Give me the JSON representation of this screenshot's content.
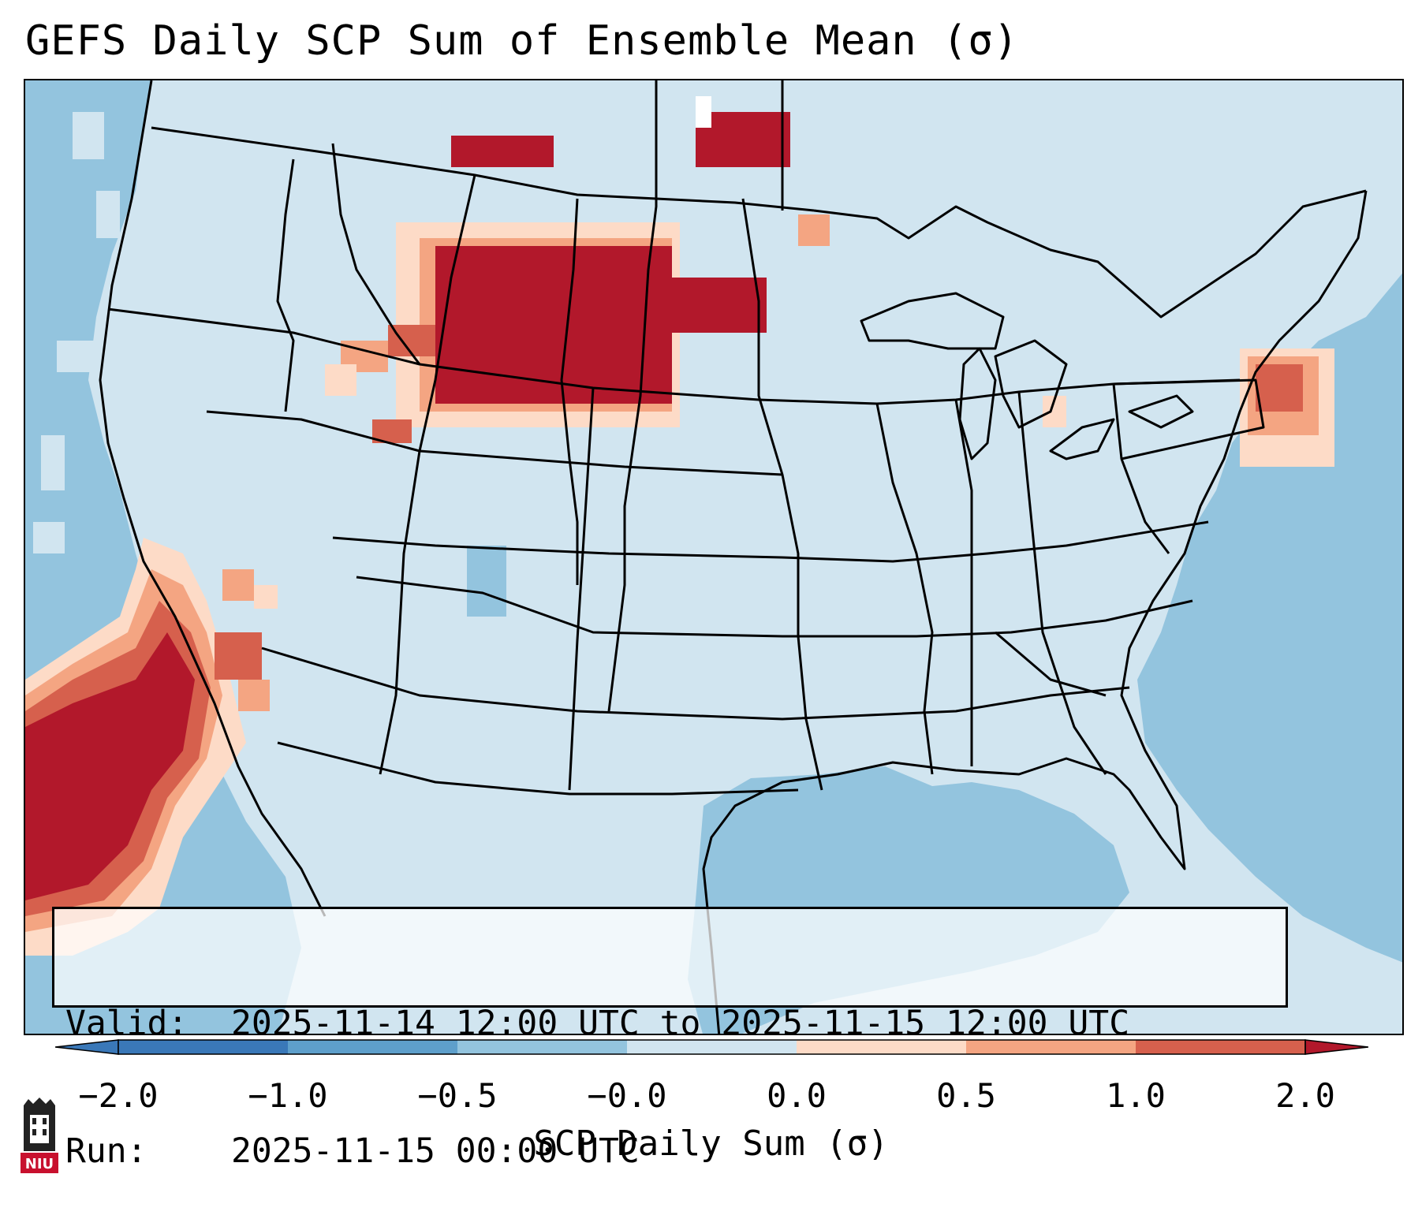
{
  "title": "GEFS Daily SCP Sum of Ensemble Mean (σ)",
  "info": {
    "valid_label": "Valid:",
    "valid_value": "2025-11-14 12:00 UTC to 2025-11-15 12:00 UTC",
    "run_label": "Run:",
    "run_value": "2025-11-15 00:00 UTC"
  },
  "colorbar": {
    "label": "SCP Daily Sum (σ)",
    "ticks": [
      "−2.0",
      "−1.0",
      "−0.5",
      "−0.0",
      "0.0",
      "0.5",
      "1.0",
      "2.0"
    ],
    "bins": [
      "#3a78b8",
      "#5e9fcb",
      "#93c4de",
      "#d1e5f0",
      "#fddbc7",
      "#f4a582",
      "#d6604d",
      "#b2182b"
    ]
  },
  "map": {
    "region": "Contiguous United States",
    "colors": {
      "land": "#d1e5f0",
      "ocean": "#93c4de",
      "strong_negative": "#5e9fcb",
      "weak_positive": "#fddbc7",
      "moderate_positive": "#f4a582",
      "high_positive": "#d6604d",
      "extreme_positive": "#b2182b",
      "boundaries": "#000000"
    }
  },
  "logo": {
    "text": "NIU",
    "color": "#c8102e"
  }
}
